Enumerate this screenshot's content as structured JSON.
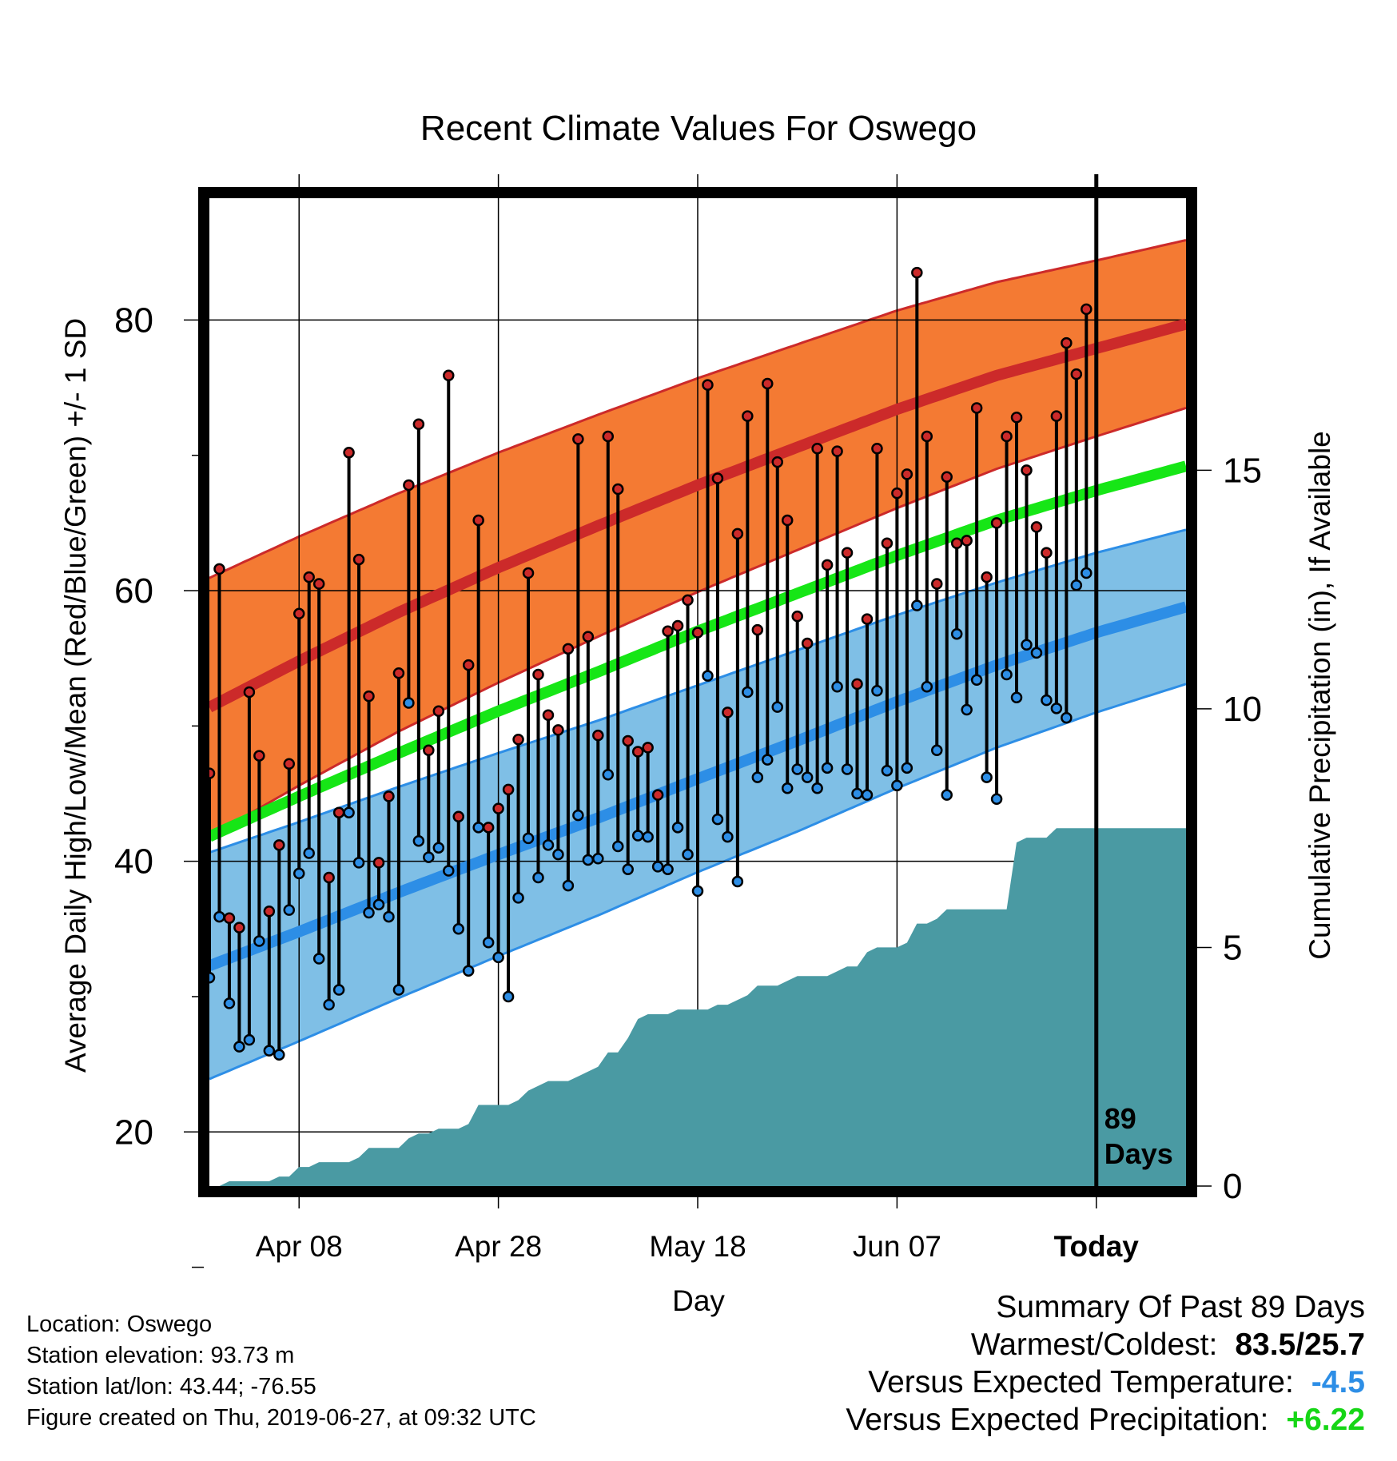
{
  "chart_data": {
    "type": "line",
    "title": "Recent Climate Values For Oswego",
    "xlabel": "Day",
    "ylabel": "Average Daily High/Low/Mean (Red/Blue/Green) +/- 1 SD",
    "y2label": "Cumulative Precipitation (in), If Available",
    "x_tick_labels": [
      "Apr 08",
      "Apr 28",
      "May 18",
      "Jun 07",
      "Today"
    ],
    "y_ticks": [
      20,
      40,
      60,
      80
    ],
    "y2_ticks": [
      0,
      5,
      10,
      15
    ],
    "ylim": [
      16,
      89
    ],
    "y2lim": [
      0,
      20.7
    ],
    "day_range": [
      -89,
      9
    ],
    "today_label": "89\nDays",
    "x_days": [
      -89,
      -88,
      -87,
      -86,
      -85,
      -84,
      -83,
      -82,
      -81,
      -80,
      -79,
      -78,
      -77,
      -76,
      -75,
      -74,
      -73,
      -72,
      -71,
      -70,
      -69,
      -68,
      -67,
      -66,
      -65,
      -64,
      -63,
      -62,
      -61,
      -60,
      -59,
      -58,
      -57,
      -56,
      -55,
      -54,
      -53,
      -52,
      -51,
      -50,
      -49,
      -48,
      -47,
      -46,
      -45,
      -44,
      -43,
      -42,
      -41,
      -40,
      -39,
      -38,
      -37,
      -36,
      -35,
      -34,
      -33,
      -32,
      -31,
      -30,
      -29,
      -28,
      -27,
      -26,
      -25,
      -24,
      -23,
      -22,
      -21,
      -20,
      -19,
      -18,
      -17,
      -16,
      -15,
      -14,
      -13,
      -12,
      -11,
      -10,
      -9,
      -8,
      -7,
      -6,
      -5,
      -4,
      -3,
      -2,
      -1
    ],
    "observed_high": [
      46.5,
      61.6,
      35.8,
      35.1,
      52.5,
      47.8,
      36.3,
      41.2,
      47.2,
      58.3,
      61.0,
      60.5,
      38.8,
      43.6,
      70.2,
      62.3,
      52.2,
      39.9,
      44.8,
      53.9,
      67.8,
      72.3,
      48.2,
      51.1,
      75.9,
      43.3,
      54.5,
      65.2,
      42.5,
      43.9,
      45.3,
      49.0,
      61.3,
      53.8,
      50.8,
      49.7,
      55.7,
      71.2,
      56.6,
      49.3,
      71.4,
      67.5,
      48.9,
      48.1,
      48.4,
      44.9,
      57.0,
      57.4,
      59.3,
      56.9,
      75.2,
      68.3,
      51.0,
      64.2,
      72.9,
      57.1,
      75.3,
      69.5,
      65.2,
      58.1,
      56.1,
      70.5,
      61.9,
      70.3,
      62.8,
      53.1,
      57.9,
      70.5,
      63.5,
      67.2,
      68.6,
      83.5,
      71.4,
      60.5,
      68.4,
      63.5,
      63.7,
      73.5,
      61.0,
      65.0,
      71.4,
      72.8,
      68.9,
      64.7,
      62.8,
      72.9,
      78.3,
      76.0,
      80.8
    ],
    "observed_low": [
      31.4,
      35.9,
      29.5,
      26.3,
      26.8,
      34.1,
      26.0,
      25.7,
      36.4,
      39.1,
      40.6,
      32.8,
      29.4,
      30.5,
      43.6,
      39.9,
      36.2,
      36.8,
      35.9,
      30.5,
      51.7,
      41.5,
      40.3,
      41.0,
      39.3,
      35.0,
      31.9,
      42.5,
      34.0,
      32.9,
      30.0,
      37.3,
      41.7,
      38.8,
      41.2,
      40.5,
      38.2,
      43.4,
      40.1,
      40.2,
      46.4,
      41.1,
      39.4,
      41.9,
      41.8,
      39.6,
      39.4,
      42.5,
      40.5,
      37.8,
      53.7,
      43.1,
      41.8,
      38.5,
      52.5,
      46.2,
      47.5,
      51.4,
      45.4,
      46.8,
      46.2,
      45.4,
      46.9,
      52.9,
      46.8,
      45.0,
      44.9,
      52.6,
      46.7,
      45.6,
      46.9,
      58.9,
      52.9,
      48.2,
      44.9,
      56.8,
      51.2,
      53.4,
      46.2,
      44.6,
      53.8,
      52.1,
      56.0,
      55.4,
      51.9,
      51.3,
      50.6,
      60.4,
      61.3
    ],
    "precip_cumulative": [
      0,
      0,
      0.1,
      0.1,
      0.1,
      0.1,
      0.1,
      0.2,
      0.2,
      0.4,
      0.4,
      0.5,
      0.5,
      0.5,
      0.5,
      0.6,
      0.8,
      0.8,
      0.8,
      0.8,
      1.0,
      1.1,
      1.1,
      1.2,
      1.2,
      1.2,
      1.3,
      1.7,
      1.7,
      1.7,
      1.7,
      1.8,
      2.0,
      2.1,
      2.2,
      2.2,
      2.2,
      2.3,
      2.4,
      2.5,
      2.8,
      2.8,
      3.1,
      3.5,
      3.6,
      3.6,
      3.6,
      3.7,
      3.7,
      3.7,
      3.7,
      3.8,
      3.8,
      3.9,
      4.0,
      4.2,
      4.2,
      4.2,
      4.3,
      4.4,
      4.4,
      4.4,
      4.4,
      4.5,
      4.6,
      4.6,
      4.9,
      5.0,
      5.0,
      5.0,
      5.1,
      5.5,
      5.5,
      5.6,
      5.8,
      5.8,
      5.8,
      5.8,
      5.8,
      5.8,
      5.8,
      7.2,
      7.3,
      7.3,
      7.3,
      7.5,
      7.5,
      7.5,
      7.5
    ],
    "normals": {
      "days": [
        -99,
        -90,
        -80,
        -70,
        -60,
        -50,
        -40,
        -30,
        -20,
        -10,
        0,
        9
      ],
      "high_mean": [
        47.6,
        51.0,
        54.8,
        58.4,
        61.7,
        64.8,
        67.8,
        70.6,
        73.4,
        75.9,
        77.9,
        79.7
      ],
      "high_sd": [
        10.0,
        9.6,
        9.2,
        8.8,
        8.5,
        8.2,
        7.9,
        7.6,
        7.3,
        6.9,
        6.5,
        6.2
      ],
      "low_mean": [
        29.7,
        32.0,
        34.8,
        37.7,
        40.5,
        43.2,
        46.1,
        48.9,
        51.8,
        54.5,
        56.9,
        58.8
      ],
      "low_sd": [
        8.7,
        8.4,
        8.1,
        7.8,
        7.5,
        7.2,
        6.9,
        6.7,
        6.4,
        6.1,
        5.9,
        5.7
      ],
      "mean": [
        38.6,
        41.5,
        44.8,
        48.0,
        51.1,
        54.0,
        57.0,
        59.8,
        62.6,
        65.2,
        67.4,
        69.2
      ]
    },
    "colors": {
      "high_band": "#f47a33",
      "high_line": "#cc2a2a",
      "low_band": "#7fbfe6",
      "low_line": "#2d8ee6",
      "mean_line": "#16e616",
      "precip_fill": "#4a9aa3",
      "high_dot": "#cc2a2a",
      "low_dot": "#2d8ee6"
    }
  },
  "info": {
    "location": "Location: Oswego",
    "elevation": "Station elevation: 93.73 m",
    "latlon": "Station lat/lon: 43.44; -76.55",
    "created": "Figure created on Thu, 2019-06-27, at 09:32 UTC"
  },
  "summary": {
    "heading": "Summary Of Past 89 Days",
    "warm_label": "Warmest/Coldest:",
    "warm_value": "83.5/25.7",
    "temp_label": "Versus Expected Temperature:",
    "temp_value": "-4.5",
    "temp_color": "#2d8ee6",
    "precip_label": "Versus Expected Precipitation:",
    "precip_value": "+6.22",
    "precip_color": "#16d616"
  }
}
